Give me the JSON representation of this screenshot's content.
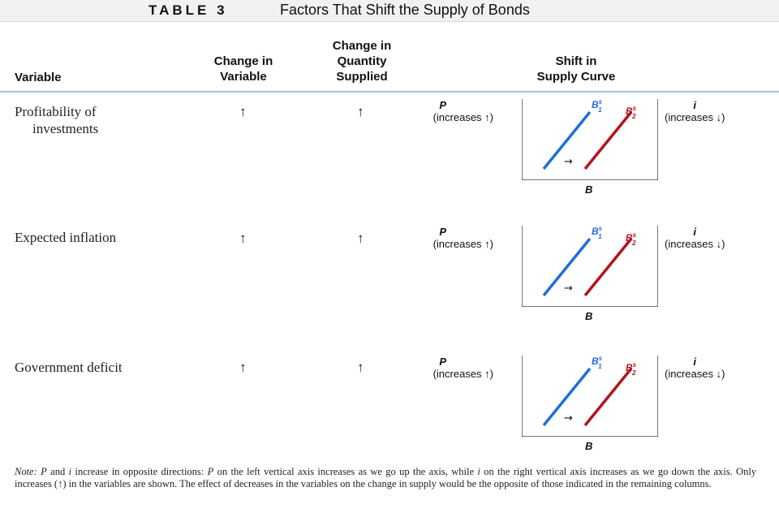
{
  "title": {
    "label": "TABLE 3",
    "text": "Factors That Shift the Supply of Bonds"
  },
  "headers": {
    "variable": "Variable",
    "change_in_variable": [
      "Change in",
      "Variable"
    ],
    "change_in_quantity": [
      "Change in",
      "Quantity",
      "Supplied"
    ],
    "shift": [
      "Shift in",
      "Supply Curve"
    ]
  },
  "rows": [
    {
      "variable": [
        "Profitability of",
        "investments"
      ],
      "change_variable": "↑",
      "change_quantity": "↑"
    },
    {
      "variable": [
        "Expected inflation"
      ],
      "change_variable": "↑",
      "change_quantity": "↑"
    },
    {
      "variable": [
        "Government deficit"
      ],
      "change_variable": "↑",
      "change_quantity": "↑"
    }
  ],
  "graph": {
    "left_axis_var": "P",
    "left_axis_note": "(increases ↑)",
    "right_axis_var": "i",
    "right_axis_note": "(increases ↓)",
    "x_axis": "B",
    "curve1": "B",
    "curve1_sup": "s",
    "curve1_sub": "1",
    "curve2": "B",
    "curve2_sup": "s",
    "curve2_sub": "2",
    "shift_arrow": "→",
    "colors": {
      "curve1": "#1f6fd6",
      "curve2": "#b3141d"
    }
  },
  "note": {
    "label": "Note:",
    "text_a": "P",
    "text_b": "and",
    "text_c": "i",
    "text_d": "increase in opposite directions:",
    "text_e": "P",
    "text_f": "on the left vertical axis increases as we go up the axis, while",
    "text_g": "i",
    "text_h": "on the right vertical axis increases as we go down the axis. Only increases (↑) in the variables are shown. The effect of decreases in the variables on the change in supply would be the opposite of those indicated in the remaining columns."
  }
}
